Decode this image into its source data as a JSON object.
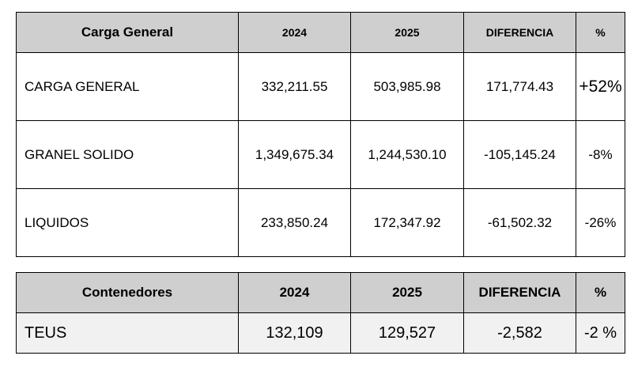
{
  "carga": {
    "headers": [
      "Carga General",
      "2024",
      "2025",
      "DIFERENCIA",
      "%"
    ],
    "rows": [
      {
        "label": "CARGA GENERAL",
        "y2024": "332,211.55",
        "y2025": "503,985.98",
        "diff": "171,774.43",
        "pct": "+52%"
      },
      {
        "label": "GRANEL SOLIDO",
        "y2024": "1,349,675.34",
        "y2025": "1,244,530.10",
        "diff": "-105,145.24",
        "pct": "-8%"
      },
      {
        "label": "LIQUIDOS",
        "y2024": "233,850.24",
        "y2025": "172,347.92",
        "diff": "-61,502.32",
        "pct": "-26%"
      }
    ]
  },
  "contenedores": {
    "headers": [
      "Contenedores",
      "2024",
      "2025",
      "DIFERENCIA",
      "%"
    ],
    "rows": [
      {
        "label": "TEUS",
        "y2024": "132,109",
        "y2025": "129,527",
        "diff": "-2,582",
        "pct": "-2 %"
      }
    ]
  }
}
